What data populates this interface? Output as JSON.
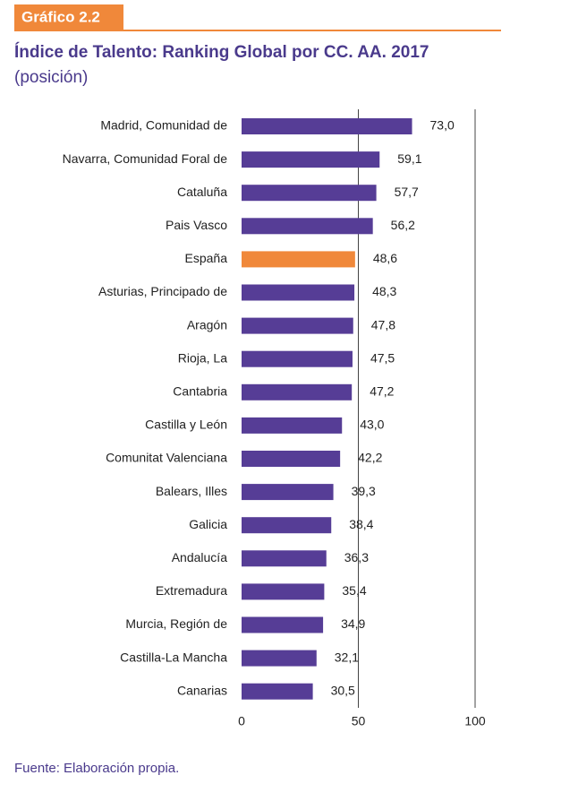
{
  "chart_data": {
    "type": "hbar",
    "badge": "Gráfico 2.2",
    "title": "Índice de Talento: Ranking Global por CC. AA. 2017",
    "subtitle": "(posición)",
    "source": "Fuente: Elaboración propia.",
    "categories": [
      "Madrid, Comunidad de",
      "Navarra, Comunidad Foral de",
      "Cataluña",
      "Pais Vasco",
      "España",
      "Asturias, Principado de",
      "Aragón",
      "Rioja, La",
      "Cantabria",
      "Castilla y León",
      "Comunitat Valenciana",
      "Balears, Illes",
      "Galicia",
      "Andalucía",
      "Extremadura",
      "Murcia, Región de",
      "Castilla-La Mancha",
      "Canarias"
    ],
    "values": [
      73.0,
      59.1,
      57.7,
      56.2,
      48.6,
      48.3,
      47.8,
      47.5,
      47.2,
      43.0,
      42.2,
      39.3,
      38.4,
      36.3,
      35.4,
      34.9,
      32.1,
      30.5
    ],
    "value_labels": [
      "73,0",
      "59,1",
      "57,7",
      "56,2",
      "48,6",
      "48,3",
      "47,8",
      "47,5",
      "47,2",
      "43,0",
      "42,2",
      "39,3",
      "38,4",
      "36,3",
      "35,4",
      "34,9",
      "32,1",
      "30,5"
    ],
    "colors": [
      "#563d96",
      "#563d96",
      "#563d96",
      "#563d96",
      "#f0883a",
      "#563d96",
      "#563d96",
      "#563d96",
      "#563d96",
      "#563d96",
      "#563d96",
      "#563d96",
      "#563d96",
      "#563d96",
      "#563d96",
      "#563d96",
      "#563d96",
      "#563d96"
    ],
    "xlim": [
      0,
      100
    ],
    "xticks": [
      0,
      50,
      100
    ],
    "grid": true
  }
}
